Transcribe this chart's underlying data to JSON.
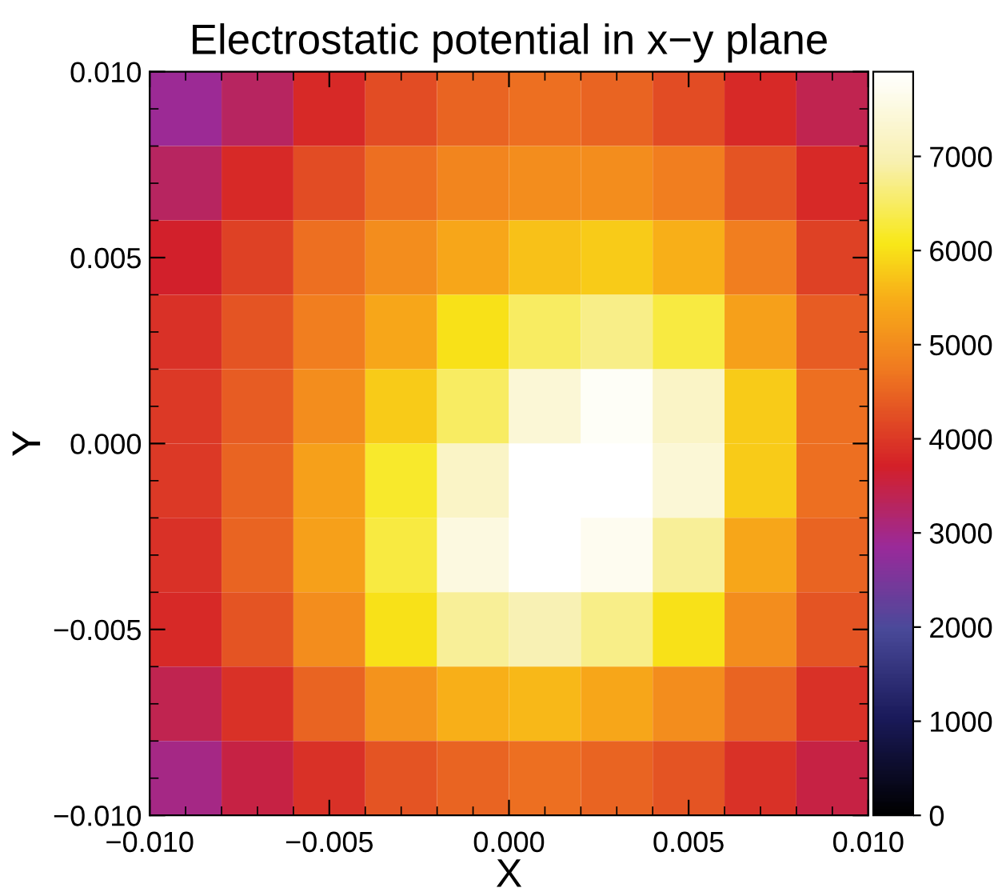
{
  "chart_data": {
    "type": "heatmap",
    "title": "Electrostatic potential in x−y plane",
    "xlabel": "X",
    "ylabel": "Y",
    "xlim": [
      -0.01,
      0.01
    ],
    "ylim": [
      -0.01,
      0.01
    ],
    "xticks": [
      {
        "value": -0.01,
        "label": "−0.010"
      },
      {
        "value": -0.005,
        "label": "−0.005"
      },
      {
        "value": 0,
        "label": "0.000"
      },
      {
        "value": 0.005,
        "label": "0.005"
      },
      {
        "value": 0.01,
        "label": "0.010"
      }
    ],
    "yticks": [
      {
        "value": -0.01,
        "label": "−0.010"
      },
      {
        "value": -0.005,
        "label": "−0.005"
      },
      {
        "value": 0,
        "label": "0.000"
      },
      {
        "value": 0.005,
        "label": "0.005"
      },
      {
        "value": 0.01,
        "label": "0.010"
      }
    ],
    "clim": [
      0,
      7900
    ],
    "cticks": [
      0,
      1000,
      2000,
      3000,
      4000,
      5000,
      6000,
      7000
    ],
    "cells": [
      [
        2900,
        3300,
        3800,
        4200,
        4500,
        4600,
        4500,
        4200,
        3800,
        3400
      ],
      [
        3300,
        3800,
        4200,
        4600,
        4900,
        5000,
        5000,
        4800,
        4300,
        3800
      ],
      [
        3700,
        4100,
        4600,
        5000,
        5400,
        5700,
        5800,
        5500,
        4800,
        4100
      ],
      [
        3900,
        4300,
        4800,
        5400,
        6000,
        6500,
        6700,
        6300,
        5300,
        4400
      ],
      [
        4000,
        4400,
        5000,
        5800,
        6500,
        7400,
        7800,
        7200,
        5800,
        4600
      ],
      [
        4000,
        4500,
        5300,
        6200,
        7200,
        7900,
        7900,
        7400,
        5800,
        4600
      ],
      [
        3900,
        4500,
        5300,
        6300,
        7500,
        7900,
        7700,
        6800,
        5400,
        4500
      ],
      [
        3800,
        4300,
        5000,
        6000,
        6800,
        7000,
        6700,
        6000,
        5000,
        4300
      ],
      [
        3400,
        3900,
        4500,
        5100,
        5500,
        5600,
        5400,
        5000,
        4500,
        3900
      ],
      [
        3000,
        3500,
        3900,
        4300,
        4500,
        4600,
        4500,
        4300,
        3900,
        3500
      ]
    ]
  }
}
